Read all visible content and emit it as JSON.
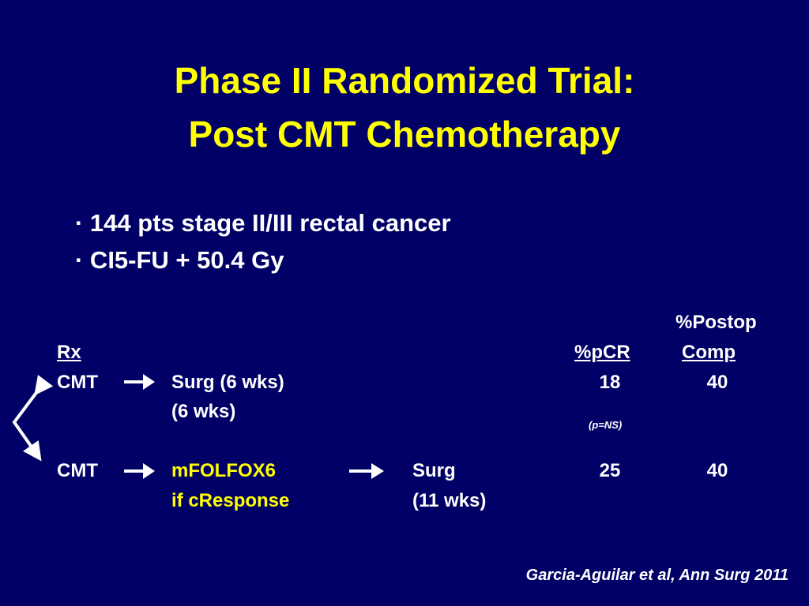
{
  "title": {
    "line1": "Phase II Randomized Trial:",
    "line2": "Post CMT Chemotherapy"
  },
  "bullets": [
    "· 144 pts stage II/III rectal cancer",
    "· CI5-FU + 50.4 Gy"
  ],
  "table": {
    "header": {
      "rx": "Rx",
      "pcr": "%pCR",
      "postop_line1": "%Postop",
      "postop_line2": "Comp"
    },
    "rows": [
      {
        "arm": "CMT",
        "step1": "Surg (6 wks)",
        "step1_note": "(6 wks)",
        "pcr": "18",
        "comp": "40"
      },
      {
        "arm": "CMT",
        "step1": "mFOLFOX6",
        "step1_note": "if cResponse",
        "step2": "Surg",
        "step2_note": "(11 wks)",
        "pcr": "25",
        "comp": "40"
      }
    ],
    "p_note": "(p=NS)"
  },
  "citation": "Garcia-Aguilar et al, Ann Surg 2011"
}
